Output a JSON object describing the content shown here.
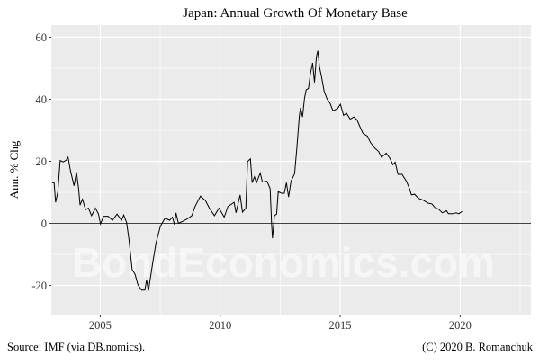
{
  "chart_data": {
    "type": "line",
    "title": "Japan: Annual Growth Of Monetary Base",
    "xlabel": "",
    "ylabel": "Ann. % Chg",
    "xlim": [
      2002.96,
      2022.95
    ],
    "ylim": [
      -29.4,
      63.9
    ],
    "grid": true,
    "x_ticks": [
      2005,
      2010,
      2015,
      2020
    ],
    "x_tick_labels": [
      "2005",
      "2010",
      "2015",
      "2020"
    ],
    "y_ticks": [
      -20,
      0,
      20,
      40,
      60
    ],
    "y_tick_labels": [
      "-20",
      "0",
      "20",
      "40",
      "60"
    ],
    "x_minor": [
      2007.5,
      2012.5,
      2017.5,
      2022.5
    ],
    "y_minor": [
      -10,
      10,
      30,
      50
    ],
    "reference_line": {
      "y": 0,
      "color": "#3333AA"
    },
    "series": [
      {
        "name": "Monetary base growth",
        "color": "#000000",
        "x": [
          2003.0,
          2003.08,
          2003.14,
          2003.23,
          2003.33,
          2003.45,
          2003.57,
          2003.66,
          2003.76,
          2003.91,
          2004.01,
          2004.1,
          2004.16,
          2004.26,
          2004.39,
          2004.51,
          2004.64,
          2004.8,
          2004.93,
          2005.01,
          2005.14,
          2005.33,
          2005.51,
          2005.7,
          2005.89,
          2005.98,
          2006.1,
          2006.2,
          2006.33,
          2006.45,
          2006.57,
          2006.72,
          2006.86,
          2006.93,
          2007.01,
          2007.2,
          2007.33,
          2007.51,
          2007.7,
          2007.89,
          2008.01,
          2008.1,
          2008.16,
          2008.26,
          2008.45,
          2008.64,
          2008.82,
          2008.95,
          2009.18,
          2009.39,
          2009.55,
          2009.76,
          2009.95,
          2010.17,
          2010.32,
          2010.58,
          2010.66,
          2010.83,
          2010.93,
          2011.07,
          2011.14,
          2011.26,
          2011.33,
          2011.43,
          2011.51,
          2011.67,
          2011.76,
          2011.95,
          2012.08,
          2012.14,
          2012.18,
          2012.26,
          2012.35,
          2012.42,
          2012.57,
          2012.67,
          2012.76,
          2012.85,
          2012.95,
          2013.1,
          2013.2,
          2013.3,
          2013.35,
          2013.43,
          2013.51,
          2013.58,
          2013.68,
          2013.76,
          2013.85,
          2013.93,
          2014.01,
          2014.07,
          2014.14,
          2014.22,
          2014.33,
          2014.45,
          2014.58,
          2014.7,
          2014.89,
          2015.01,
          2015.14,
          2015.26,
          2015.42,
          2015.57,
          2015.7,
          2015.83,
          2015.95,
          2016.14,
          2016.26,
          2016.45,
          2016.6,
          2016.72,
          2016.92,
          2017.07,
          2017.2,
          2017.29,
          2017.41,
          2017.58,
          2017.76,
          2017.89,
          2017.97,
          2018.1,
          2018.26,
          2018.45,
          2018.67,
          2018.82,
          2018.95,
          2019.1,
          2019.26,
          2019.43,
          2019.51,
          2019.7,
          2019.83,
          2019.95,
          2020.08
        ],
        "y": [
          13.1,
          13.0,
          6.8,
          10.0,
          20.3,
          19.8,
          20.3,
          21.3,
          17.0,
          12.1,
          16.5,
          11.2,
          5.9,
          7.8,
          4.4,
          4.9,
          2.5,
          4.9,
          3.0,
          -0.2,
          2.3,
          2.3,
          1.0,
          3.0,
          1.0,
          2.7,
          0.3,
          -5.3,
          -14.9,
          -16.4,
          -19.8,
          -21.5,
          -21.5,
          -18.3,
          -21.7,
          -12.0,
          -6.2,
          -0.9,
          1.7,
          1.0,
          2.0,
          -0.4,
          3.4,
          0.0,
          0.7,
          1.5,
          2.5,
          5.4,
          8.8,
          7.3,
          4.9,
          2.5,
          4.9,
          2.0,
          5.4,
          6.8,
          3.4,
          9.2,
          3.6,
          4.9,
          19.9,
          20.8,
          13.1,
          15.0,
          13.1,
          16.2,
          13.3,
          13.6,
          11.2,
          0.0,
          -4.8,
          2.5,
          3.0,
          10.2,
          9.7,
          9.7,
          13.1,
          8.5,
          13.6,
          16.0,
          24.7,
          34.8,
          37.2,
          34.3,
          40.1,
          43.0,
          43.5,
          48.3,
          51.7,
          45.4,
          53.7,
          55.6,
          50.3,
          47.4,
          42.6,
          40.1,
          38.7,
          36.3,
          37.0,
          38.4,
          34.8,
          35.5,
          33.6,
          34.3,
          33.4,
          31.0,
          29.0,
          28.1,
          26.1,
          24.2,
          23.2,
          21.3,
          22.6,
          21.0,
          18.9,
          19.7,
          15.8,
          15.8,
          13.6,
          11.2,
          9.2,
          9.4,
          8.1,
          7.5,
          6.5,
          6.3,
          5.1,
          4.6,
          3.4,
          4.1,
          3.1,
          3.1,
          3.4,
          3.1,
          3.9
        ]
      }
    ],
    "source": "Source: IMF (via DB.nomics).",
    "copyright": "(C) 2020 B. Romanchuk",
    "watermark": "BondEconomics.com"
  }
}
